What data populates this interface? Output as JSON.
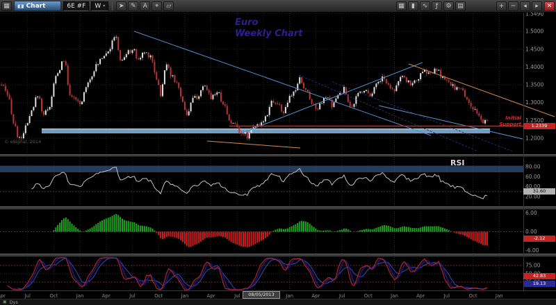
{
  "toolbar": {
    "app_icon": "▦",
    "title": "Chart",
    "symbol": "6E #F",
    "interval": "W",
    "tools": [
      {
        "name": "pointer-tool-icon",
        "glyph": "➤"
      },
      {
        "name": "pencil-tool-icon",
        "glyph": "✎"
      },
      {
        "name": "text-tool-icon",
        "glyph": "A"
      },
      {
        "name": "crosshair-tool-icon",
        "glyph": "⌖"
      },
      {
        "name": "eraser-tool-icon",
        "glyph": "▱"
      }
    ],
    "right_icons_a": [
      {
        "name": "grid-icon",
        "glyph": "▦"
      },
      {
        "name": "candlestick-style-icon",
        "glyph": "▮"
      },
      {
        "name": "line-style-icon",
        "glyph": "∿"
      },
      {
        "name": "indicator-icon",
        "glyph": "ƒ"
      },
      {
        "name": "settings-gear-icon",
        "glyph": "⚙"
      },
      {
        "name": "layout-icon",
        "glyph": "▤"
      }
    ],
    "right_icons_b": [
      {
        "name": "zoom-in-icon",
        "glyph": "+"
      },
      {
        "name": "zoom-out-icon",
        "glyph": "−"
      },
      {
        "name": "scroll-left-icon",
        "glyph": "◂"
      },
      {
        "name": "scroll-right-icon",
        "glyph": "▸"
      }
    ],
    "close": "✕"
  },
  "annotations": {
    "title1": "Euro",
    "title2": "Weekly Chart",
    "support1": "Initial",
    "support2": "Support",
    "rsi_label": "RSI",
    "watermark": "© eSignal, 2014"
  },
  "axes": {
    "price_labels": [
      "1.5490",
      "1.5000",
      "1.4500",
      "1.4000",
      "1.3500",
      "1.3000",
      "1.2500",
      "1.2000"
    ],
    "price_flag": "1.2339",
    "rsi_labels": [
      "80.00",
      "60.00",
      "40.00",
      "20.00"
    ],
    "rsi_flag": "31.60",
    "macd_labels": [
      "6.00",
      "0.00",
      "-6.00"
    ],
    "macd_flag": "-2.12",
    "stoch_labels": [
      "75.00",
      "50.00",
      "25.00"
    ],
    "stoch_flag_red": "42.83",
    "stoch_flag_navy": "19.13",
    "time_labels": [
      "Apr",
      "Jul",
      "Oct",
      "Jan",
      "Apr",
      "Jul",
      "Oct",
      "Jan",
      "Apr",
      "Jul",
      "Oct",
      "Jan",
      "Apr",
      "Jul",
      "Oct",
      "Jan",
      "Apr",
      "Jul",
      "Oct",
      "Jan"
    ],
    "date_flag": "08/05/2013"
  },
  "bottom": {
    "page_tab": "Dys",
    "page_tab_icon": "▣"
  },
  "colors": {
    "accent_red": "#cc2424",
    "support_band_blue": "#8ab8e0",
    "rsi_band_blue": "#3f6fa8",
    "trendline_blue": "#4f8fd0",
    "trendline_navy_dotted": "#232d6e",
    "trendline_orange": "#d98b4a",
    "macd_green": "#1da31d",
    "macd_red": "#cc2020",
    "candle_up": "#e2e2e2",
    "candle_down": "#c03232",
    "stoch_red": "#c42525",
    "stoch_navy": "#191975",
    "stoch_blue": "#3a49b8",
    "title_purple": "#2d1f8f"
  },
  "chart_data": {
    "type": "candlestick",
    "instrument": "6E #F (Euro FX futures)",
    "interval": "Weekly",
    "time_span": "Apr 2010 – Nov 2014",
    "price_axis_range": [
      1.155,
      1.553
    ],
    "support_line": 1.2339,
    "support_zone": [
      1.207,
      1.221
    ],
    "weekly_close_anchors": [
      [
        0,
        1.35
      ],
      [
        4,
        1.307
      ],
      [
        6,
        1.243
      ],
      [
        9,
        1.196
      ],
      [
        12,
        1.228
      ],
      [
        15,
        1.272
      ],
      [
        18,
        1.323
      ],
      [
        21,
        1.267
      ],
      [
        24,
        1.292
      ],
      [
        27,
        1.372
      ],
      [
        31,
        1.421
      ],
      [
        34,
        1.326
      ],
      [
        37,
        1.304
      ],
      [
        39,
        1.293
      ],
      [
        43,
        1.36
      ],
      [
        47,
        1.401
      ],
      [
        50,
        1.43
      ],
      [
        53,
        1.449
      ],
      [
        57,
        1.486
      ],
      [
        59,
        1.414
      ],
      [
        62,
        1.436
      ],
      [
        65,
        1.45
      ],
      [
        68,
        1.421
      ],
      [
        71,
        1.441
      ],
      [
        74,
        1.433
      ],
      [
        77,
        1.37
      ],
      [
        79,
        1.323
      ],
      [
        82,
        1.413
      ],
      [
        85,
        1.369
      ],
      [
        88,
        1.344
      ],
      [
        90,
        1.298
      ],
      [
        92,
        1.268
      ],
      [
        95,
        1.309
      ],
      [
        98,
        1.321
      ],
      [
        101,
        1.344
      ],
      [
        104,
        1.317
      ],
      [
        107,
        1.331
      ],
      [
        110,
        1.301
      ],
      [
        113,
        1.253
      ],
      [
        116,
        1.236
      ],
      [
        119,
        1.219
      ],
      [
        122,
        1.207
      ],
      [
        125,
        1.236
      ],
      [
        128,
        1.231
      ],
      [
        131,
        1.261
      ],
      [
        134,
        1.305
      ],
      [
        137,
        1.295
      ],
      [
        140,
        1.273
      ],
      [
        143,
        1.311
      ],
      [
        146,
        1.337
      ],
      [
        148,
        1.365
      ],
      [
        151,
        1.335
      ],
      [
        154,
        1.303
      ],
      [
        156,
        1.283
      ],
      [
        159,
        1.305
      ],
      [
        162,
        1.315
      ],
      [
        164,
        1.287
      ],
      [
        167,
        1.321
      ],
      [
        170,
        1.337
      ],
      [
        172,
        1.309
      ],
      [
        174,
        1.281
      ],
      [
        177,
        1.327
      ],
      [
        180,
        1.337
      ],
      [
        183,
        1.325
      ],
      [
        186,
        1.351
      ],
      [
        189,
        1.371
      ],
      [
        192,
        1.349
      ],
      [
        195,
        1.339
      ],
      [
        198,
        1.371
      ],
      [
        201,
        1.361
      ],
      [
        204,
        1.353
      ],
      [
        207,
        1.371
      ],
      [
        210,
        1.387
      ],
      [
        213,
        1.381
      ],
      [
        216,
        1.391
      ],
      [
        219,
        1.369
      ],
      [
        222,
        1.353
      ],
      [
        225,
        1.343
      ],
      [
        228,
        1.337
      ],
      [
        231,
        1.311
      ],
      [
        234,
        1.283
      ],
      [
        237,
        1.257
      ],
      [
        239,
        1.243
      ],
      [
        241,
        1.249
      ]
    ],
    "indicators": [
      {
        "name": "RSI",
        "period": 14,
        "last": 31.6,
        "overbought": 70,
        "oversold": 30
      },
      {
        "name": "MACD",
        "last": -2.12,
        "range": [
          -6,
          6
        ]
      },
      {
        "name": "Stochastic",
        "last_k": 42.83,
        "last_d": 19.13,
        "range": [
          0,
          100
        ]
      }
    ]
  }
}
